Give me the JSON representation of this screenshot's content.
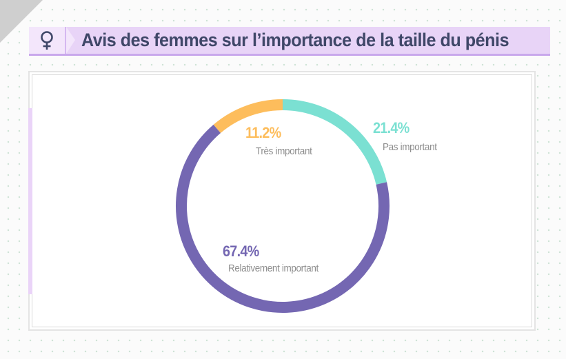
{
  "header": {
    "title": "Avis des femmes sur l’importance de la taille du pénis",
    "icon_name": "female-symbol-icon",
    "icon_glyph": "♀"
  },
  "chart_data": {
    "type": "pie",
    "variant": "donut",
    "title": "Avis des femmes sur l’importance de la taille du pénis",
    "slices": [
      {
        "name": "Très important",
        "label": "Très important",
        "value": 11.2,
        "value_text": "11.2%",
        "color": "#fdbd5c"
      },
      {
        "name": "Pas important",
        "label": "Pas important",
        "value": 21.4,
        "value_text": "21.4%",
        "color": "#7be0d2"
      },
      {
        "name": "Relativement important",
        "label": "Relativement important",
        "value": 67.4,
        "value_text": "67.4%",
        "color": "#7467b2"
      }
    ]
  },
  "colors": {
    "title_text": "#3f4768",
    "title_bar": "#e8d4f7",
    "category_text": "#8c8c8c"
  }
}
